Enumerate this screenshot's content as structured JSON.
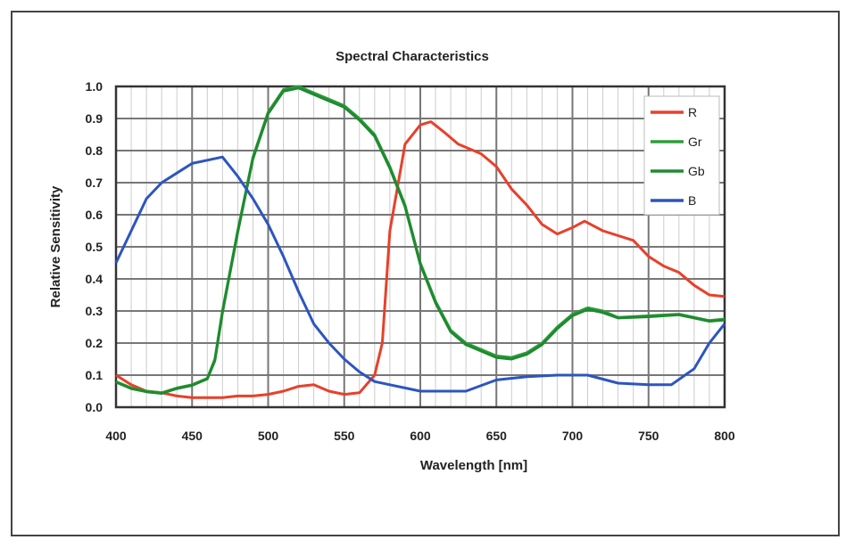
{
  "chart_data": {
    "type": "line",
    "title": "Spectral Characteristics",
    "xlabel": "Wavelength [nm]",
    "ylabel": "Relative Sensitivity",
    "xlim": [
      400,
      800
    ],
    "ylim": [
      0,
      1.0
    ],
    "xticks": [
      "400",
      "450",
      "500",
      "550",
      "600",
      "650",
      "700",
      "750",
      "800"
    ],
    "yticks": [
      "0.0",
      "0.1",
      "0.2",
      "0.3",
      "0.4",
      "0.5",
      "0.6",
      "0.7",
      "0.8",
      "0.9",
      "1.0"
    ],
    "grid": true,
    "legend_position": "top-right",
    "series": [
      {
        "name": "R",
        "color": "#e8402a",
        "points": [
          [
            400,
            0.1
          ],
          [
            410,
            0.07
          ],
          [
            420,
            0.05
          ],
          [
            430,
            0.045
          ],
          [
            440,
            0.035
          ],
          [
            450,
            0.03
          ],
          [
            460,
            0.03
          ],
          [
            470,
            0.03
          ],
          [
            480,
            0.035
          ],
          [
            490,
            0.035
          ],
          [
            500,
            0.04
          ],
          [
            510,
            0.05
          ],
          [
            520,
            0.065
          ],
          [
            530,
            0.07
          ],
          [
            540,
            0.05
          ],
          [
            550,
            0.04
          ],
          [
            560,
            0.045
          ],
          [
            570,
            0.1
          ],
          [
            575,
            0.2
          ],
          [
            580,
            0.55
          ],
          [
            590,
            0.82
          ],
          [
            600,
            0.88
          ],
          [
            607,
            0.89
          ],
          [
            615,
            0.86
          ],
          [
            625,
            0.82
          ],
          [
            640,
            0.79
          ],
          [
            650,
            0.75
          ],
          [
            660,
            0.68
          ],
          [
            670,
            0.63
          ],
          [
            680,
            0.57
          ],
          [
            690,
            0.54
          ],
          [
            700,
            0.56
          ],
          [
            708,
            0.58
          ],
          [
            720,
            0.55
          ],
          [
            740,
            0.52
          ],
          [
            750,
            0.47
          ],
          [
            760,
            0.44
          ],
          [
            770,
            0.42
          ],
          [
            780,
            0.38
          ],
          [
            790,
            0.35
          ],
          [
            800,
            0.345
          ]
        ]
      },
      {
        "name": "Gr",
        "color": "#2e9e3a",
        "points": [
          [
            400,
            0.08
          ],
          [
            410,
            0.06
          ],
          [
            420,
            0.05
          ],
          [
            430,
            0.045
          ],
          [
            440,
            0.06
          ],
          [
            450,
            0.07
          ],
          [
            460,
            0.09
          ],
          [
            465,
            0.15
          ],
          [
            470,
            0.3
          ],
          [
            480,
            0.55
          ],
          [
            490,
            0.78
          ],
          [
            500,
            0.92
          ],
          [
            510,
            0.99
          ],
          [
            520,
            1.0
          ],
          [
            530,
            0.98
          ],
          [
            540,
            0.96
          ],
          [
            550,
            0.94
          ],
          [
            560,
            0.9
          ],
          [
            570,
            0.85
          ],
          [
            580,
            0.75
          ],
          [
            590,
            0.63
          ],
          [
            600,
            0.45
          ],
          [
            610,
            0.33
          ],
          [
            620,
            0.24
          ],
          [
            630,
            0.2
          ],
          [
            640,
            0.18
          ],
          [
            650,
            0.16
          ],
          [
            660,
            0.155
          ],
          [
            670,
            0.17
          ],
          [
            680,
            0.2
          ],
          [
            690,
            0.25
          ],
          [
            700,
            0.29
          ],
          [
            710,
            0.31
          ],
          [
            720,
            0.3
          ],
          [
            730,
            0.28
          ],
          [
            750,
            0.285
          ],
          [
            770,
            0.29
          ],
          [
            780,
            0.28
          ],
          [
            790,
            0.27
          ],
          [
            800,
            0.275
          ]
        ]
      },
      {
        "name": "Gb",
        "color": "#1f8a30",
        "points": [
          [
            400,
            0.078
          ],
          [
            410,
            0.058
          ],
          [
            420,
            0.048
          ],
          [
            430,
            0.043
          ],
          [
            440,
            0.058
          ],
          [
            450,
            0.068
          ],
          [
            460,
            0.088
          ],
          [
            465,
            0.145
          ],
          [
            470,
            0.295
          ],
          [
            480,
            0.545
          ],
          [
            490,
            0.775
          ],
          [
            500,
            0.915
          ],
          [
            510,
            0.985
          ],
          [
            520,
            0.995
          ],
          [
            530,
            0.975
          ],
          [
            540,
            0.955
          ],
          [
            550,
            0.935
          ],
          [
            560,
            0.895
          ],
          [
            570,
            0.845
          ],
          [
            580,
            0.745
          ],
          [
            590,
            0.625
          ],
          [
            600,
            0.445
          ],
          [
            610,
            0.325
          ],
          [
            620,
            0.235
          ],
          [
            630,
            0.195
          ],
          [
            640,
            0.175
          ],
          [
            650,
            0.155
          ],
          [
            660,
            0.15
          ],
          [
            670,
            0.165
          ],
          [
            680,
            0.195
          ],
          [
            690,
            0.245
          ],
          [
            700,
            0.285
          ],
          [
            710,
            0.305
          ],
          [
            720,
            0.295
          ],
          [
            730,
            0.278
          ],
          [
            750,
            0.282
          ],
          [
            770,
            0.288
          ],
          [
            780,
            0.278
          ],
          [
            790,
            0.268
          ],
          [
            800,
            0.272
          ]
        ]
      },
      {
        "name": "B",
        "color": "#2d55c0",
        "points": [
          [
            400,
            0.45
          ],
          [
            410,
            0.55
          ],
          [
            420,
            0.65
          ],
          [
            430,
            0.7
          ],
          [
            440,
            0.73
          ],
          [
            450,
            0.76
          ],
          [
            460,
            0.77
          ],
          [
            470,
            0.78
          ],
          [
            480,
            0.72
          ],
          [
            490,
            0.65
          ],
          [
            500,
            0.57
          ],
          [
            510,
            0.47
          ],
          [
            520,
            0.36
          ],
          [
            530,
            0.26
          ],
          [
            540,
            0.2
          ],
          [
            550,
            0.15
          ],
          [
            560,
            0.11
          ],
          [
            570,
            0.08
          ],
          [
            580,
            0.07
          ],
          [
            590,
            0.06
          ],
          [
            600,
            0.05
          ],
          [
            620,
            0.05
          ],
          [
            630,
            0.05
          ],
          [
            650,
            0.085
          ],
          [
            670,
            0.095
          ],
          [
            690,
            0.1
          ],
          [
            710,
            0.1
          ],
          [
            730,
            0.075
          ],
          [
            750,
            0.07
          ],
          [
            765,
            0.07
          ],
          [
            780,
            0.12
          ],
          [
            790,
            0.2
          ],
          [
            800,
            0.26
          ]
        ]
      }
    ]
  }
}
